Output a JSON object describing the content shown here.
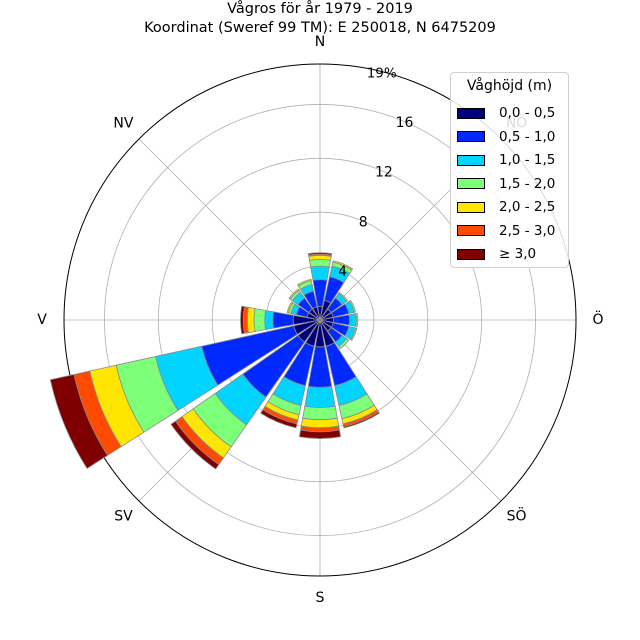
{
  "chart_data": {
    "type": "windrose",
    "title": "Vågros för år 1979 - 2019",
    "subtitle": "Koordinat (Sweref 99 TM): E 250018, N 6475209",
    "direction_labels": [
      "N",
      "NV",
      "V",
      "SV",
      "S",
      "SÖ",
      "Ö",
      "NÖ"
    ],
    "direction_angles_deg": [
      0,
      315,
      270,
      225,
      180,
      135,
      90,
      45
    ],
    "radial_ticks": [
      4,
      8,
      12,
      16
    ],
    "radial_max_label": "19%",
    "radial_max": 19,
    "legend_title": "Våghöjd (m)",
    "bins": [
      {
        "label": "0,0 - 0,5",
        "color": "#00007f"
      },
      {
        "label": "0,5 - 1,0",
        "color": "#0029ff"
      },
      {
        "label": "1,0 - 1,5",
        "color": "#00d4ff"
      },
      {
        "label": "1,5 - 2,0",
        "color": "#7dff7a"
      },
      {
        "label": "2,0 - 2,5",
        "color": "#ffe600"
      },
      {
        "label": "2,5 - 3,0",
        "color": "#ff4a00"
      },
      {
        "label": "≥ 3,0",
        "color": "#7f0000"
      }
    ],
    "sector_width_deg": 20,
    "sectors": [
      {
        "dir": 0,
        "values": [
          1.0,
          2.0,
          1.0,
          0.5,
          0.3,
          0.1,
          0.1
        ]
      },
      {
        "dir": 22.5,
        "values": [
          1.5,
          1.8,
          0.8,
          0.3,
          0.1,
          0.0,
          0.0
        ]
      },
      {
        "dir": 45,
        "values": [
          1.0,
          1.0,
          0.4,
          0.1,
          0.0,
          0.0,
          0.0
        ]
      },
      {
        "dir": 67.5,
        "values": [
          1.0,
          1.2,
          0.4,
          0.1,
          0.0,
          0.0,
          0.0
        ]
      },
      {
        "dir": 90,
        "values": [
          1.0,
          1.2,
          0.5,
          0.1,
          0.0,
          0.0,
          0.0
        ]
      },
      {
        "dir": 112.5,
        "values": [
          1.0,
          1.2,
          0.5,
          0.1,
          0.0,
          0.0,
          0.0
        ]
      },
      {
        "dir": 135,
        "values": [
          1.0,
          1.0,
          0.4,
          0.2,
          0.0,
          0.0,
          0.0
        ]
      },
      {
        "dir": 157.5,
        "values": [
          2.0,
          3.0,
          1.5,
          1.0,
          0.4,
          0.2,
          0.1
        ]
      },
      {
        "dir": 180,
        "values": [
          2.0,
          3.0,
          1.5,
          0.9,
          0.6,
          0.3,
          0.5
        ]
      },
      {
        "dir": 202.5,
        "values": [
          2.0,
          3.0,
          1.5,
          0.7,
          0.4,
          0.3,
          0.3
        ]
      },
      {
        "dir": 225,
        "values": [
          2.0,
          5.0,
          2.5,
          2.0,
          1.0,
          0.6,
          0.4
        ]
      },
      {
        "dir": 247.5,
        "values": [
          2.0,
          7.0,
          3.5,
          3.0,
          2.0,
          1.2,
          1.8
        ]
      },
      {
        "dir": 270,
        "values": [
          2.0,
          1.5,
          0.6,
          0.8,
          0.5,
          0.3,
          0.2
        ]
      },
      {
        "dir": 292.5,
        "values": [
          1.0,
          0.8,
          0.4,
          0.2,
          0.1,
          0.0,
          0.0
        ]
      },
      {
        "dir": 315,
        "values": [
          1.0,
          1.0,
          0.5,
          0.2,
          0.1,
          0.0,
          0.0
        ]
      },
      {
        "dir": 337.5,
        "values": [
          1.0,
          1.2,
          0.5,
          0.3,
          0.1,
          0.0,
          0.0
        ]
      }
    ]
  }
}
